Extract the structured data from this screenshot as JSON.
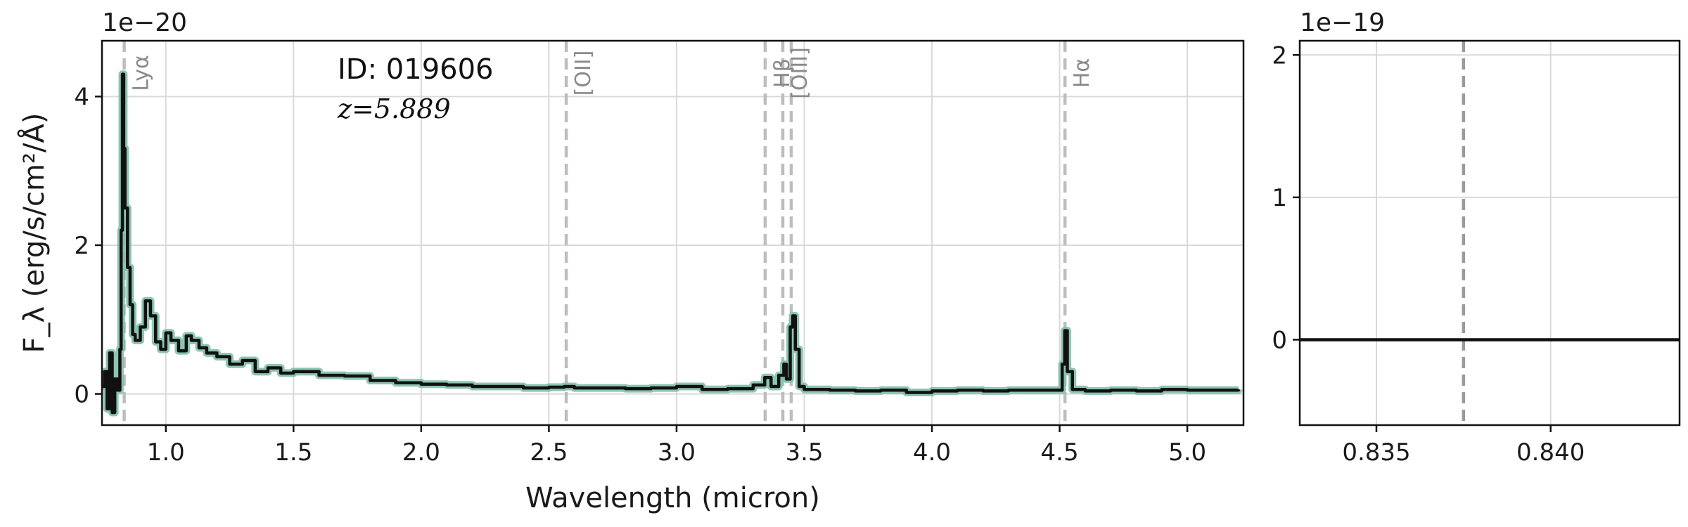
{
  "chart_data": [
    {
      "type": "line",
      "xlabel": "Wavelength (micron)",
      "ylabel": "F_λ (erg/s/cm²/Å)",
      "xlim": [
        0.75,
        5.22
      ],
      "ylim": [
        -0.42,
        4.75
      ],
      "y_offset_text": "1e−20",
      "x_ticks": [
        "1.0",
        "1.5",
        "2.0",
        "2.5",
        "3.0",
        "3.5",
        "4.0",
        "4.5",
        "5.0"
      ],
      "y_ticks": [
        "0",
        "2",
        "4"
      ],
      "grid": true,
      "annotations": [
        {
          "text": "ID: 019606"
        },
        {
          "text": "z=5.889"
        }
      ],
      "line_markers": [
        {
          "label": "Lyα",
          "x": 0.837
        },
        {
          "label": "[OII]",
          "x": 2.568
        },
        {
          "label": "Hβ",
          "x": 3.347
        },
        {
          "label": "[OIII]",
          "x": 3.416
        },
        {
          "label": "",
          "x": 3.449
        },
        {
          "label": "Hα",
          "x": 4.521
        }
      ],
      "series": [
        {
          "color": "#111111",
          "error_color": "#7fbfa9",
          "points": [
            [
              0.75,
              0.1
            ],
            [
              0.76,
              0.3
            ],
            [
              0.77,
              -0.2
            ],
            [
              0.78,
              0.55
            ],
            [
              0.79,
              -0.25
            ],
            [
              0.8,
              0.2
            ],
            [
              0.81,
              0.05
            ],
            [
              0.82,
              0.6
            ],
            [
              0.825,
              2.2
            ],
            [
              0.83,
              4.3
            ],
            [
              0.835,
              3.3
            ],
            [
              0.84,
              2.5
            ],
            [
              0.85,
              1.7
            ],
            [
              0.86,
              1.2
            ],
            [
              0.87,
              0.8
            ],
            [
              0.88,
              0.72
            ],
            [
              0.9,
              0.9
            ],
            [
              0.92,
              1.25
            ],
            [
              0.94,
              1.05
            ],
            [
              0.96,
              0.7
            ],
            [
              0.98,
              0.6
            ],
            [
              1.0,
              0.82
            ],
            [
              1.02,
              0.72
            ],
            [
              1.05,
              0.58
            ],
            [
              1.08,
              0.78
            ],
            [
              1.1,
              0.72
            ],
            [
              1.13,
              0.62
            ],
            [
              1.16,
              0.55
            ],
            [
              1.2,
              0.5
            ],
            [
              1.25,
              0.4
            ],
            [
              1.3,
              0.45
            ],
            [
              1.35,
              0.3
            ],
            [
              1.4,
              0.35
            ],
            [
              1.45,
              0.28
            ],
            [
              1.5,
              0.3
            ],
            [
              1.6,
              0.25
            ],
            [
              1.7,
              0.24
            ],
            [
              1.8,
              0.18
            ],
            [
              1.9,
              0.15
            ],
            [
              2.0,
              0.13
            ],
            [
              2.1,
              0.12
            ],
            [
              2.2,
              0.1
            ],
            [
              2.3,
              0.1
            ],
            [
              2.4,
              0.08
            ],
            [
              2.5,
              0.09
            ],
            [
              2.56,
              0.1
            ],
            [
              2.6,
              0.08
            ],
            [
              2.7,
              0.08
            ],
            [
              2.8,
              0.07
            ],
            [
              2.9,
              0.08
            ],
            [
              3.0,
              0.1
            ],
            [
              3.1,
              0.06
            ],
            [
              3.2,
              0.07
            ],
            [
              3.3,
              0.12
            ],
            [
              3.345,
              0.22
            ],
            [
              3.37,
              0.1
            ],
            [
              3.4,
              0.25
            ],
            [
              3.42,
              0.4
            ],
            [
              3.43,
              0.2
            ],
            [
              3.445,
              0.9
            ],
            [
              3.455,
              1.05
            ],
            [
              3.465,
              0.6
            ],
            [
              3.48,
              0.1
            ],
            [
              3.5,
              0.06
            ],
            [
              3.6,
              0.05
            ],
            [
              3.7,
              0.04
            ],
            [
              3.8,
              0.05
            ],
            [
              3.9,
              0.02
            ],
            [
              4.0,
              0.04
            ],
            [
              4.1,
              0.05
            ],
            [
              4.2,
              0.04
            ],
            [
              4.3,
              0.05
            ],
            [
              4.4,
              0.05
            ],
            [
              4.5,
              0.05
            ],
            [
              4.51,
              0.4
            ],
            [
              4.52,
              0.85
            ],
            [
              4.53,
              0.3
            ],
            [
              4.55,
              0.06
            ],
            [
              4.6,
              0.04
            ],
            [
              4.7,
              0.05
            ],
            [
              4.8,
              0.04
            ],
            [
              4.9,
              0.06
            ],
            [
              5.0,
              0.05
            ],
            [
              5.1,
              0.05
            ],
            [
              5.2,
              0.06
            ]
          ]
        }
      ]
    },
    {
      "type": "line",
      "xlim": [
        0.8328,
        0.8437
      ],
      "ylim": [
        -0.6,
        2.1
      ],
      "y_offset_text": "1e−19",
      "x_ticks": [
        "0.835",
        "0.840"
      ],
      "y_ticks": [
        "0",
        "1",
        "2"
      ],
      "grid": true,
      "line_markers": [
        {
          "label": "",
          "x": 0.8375
        }
      ],
      "series": [
        {
          "color": "#111111",
          "points": [
            [
              0.8328,
              0.0
            ],
            [
              0.8437,
              0.0
            ]
          ]
        }
      ]
    }
  ]
}
